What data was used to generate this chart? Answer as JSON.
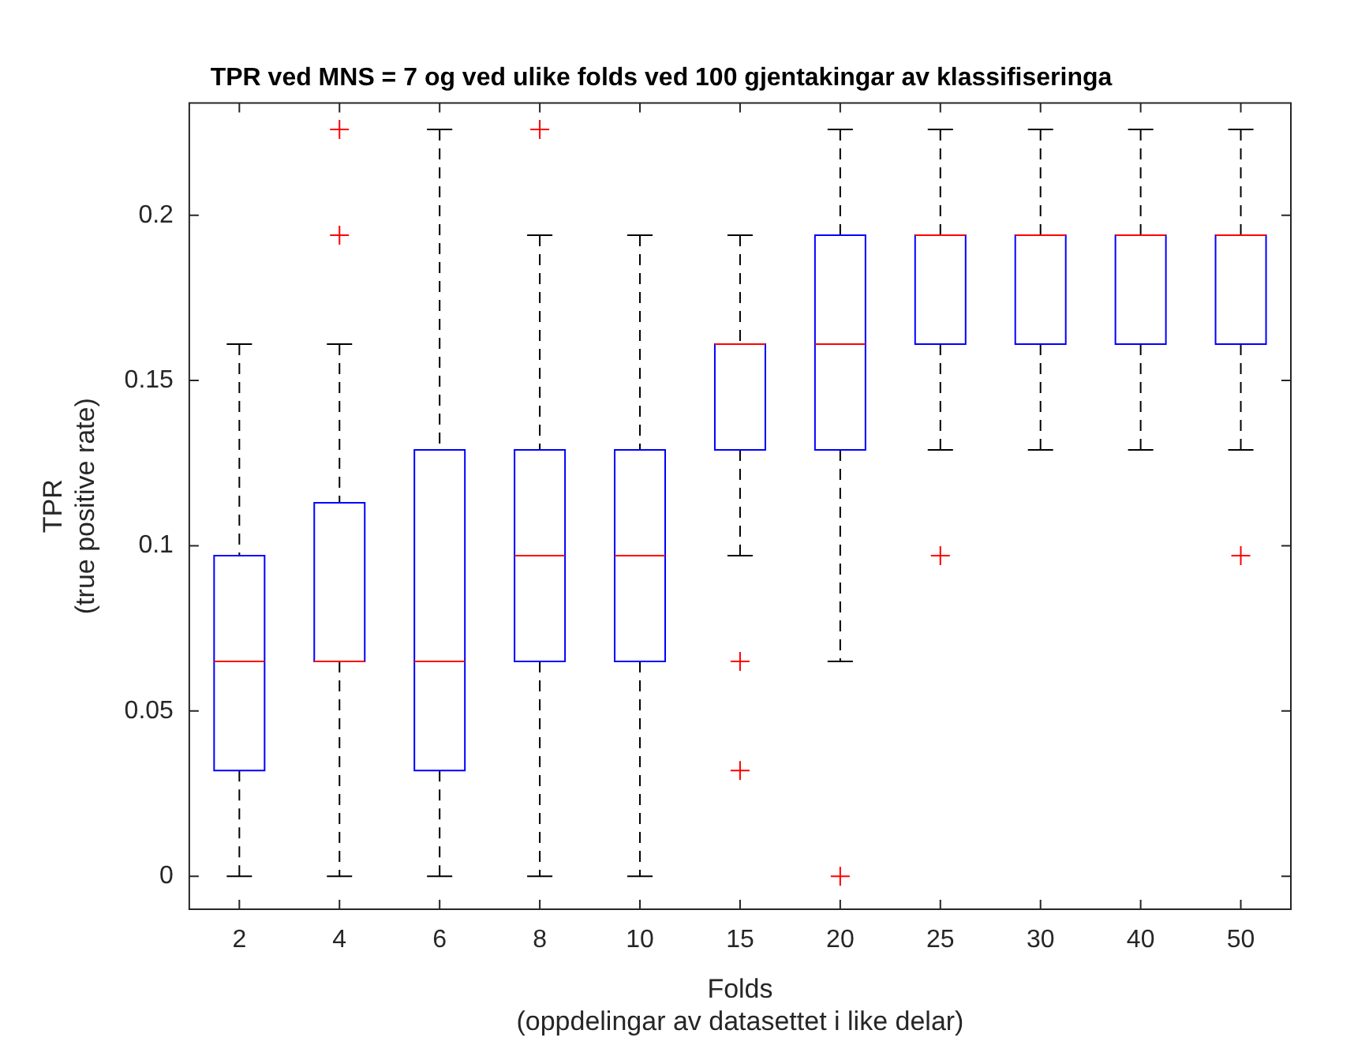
{
  "chart_data": {
    "type": "box",
    "title": "TPR ved MNS = 7 og ved ulike folds ved 100 gjentakingar av klassifiseringa",
    "xlabel": "Folds\n(oppdelingar av datasettet i like delar)",
    "ylabel": "TPR\n(true positive rate)",
    "categories": [
      "2",
      "4",
      "6",
      "8",
      "10",
      "15",
      "20",
      "25",
      "30",
      "40",
      "50"
    ],
    "ylim": [
      -0.01,
      0.234
    ],
    "yticks": [
      0,
      0.05,
      0.1,
      0.15,
      0.2
    ],
    "grid": false,
    "legend": false,
    "marker": "cross",
    "series": [
      {
        "color": "#0000ff",
        "boxes": [
          {
            "low": 0,
            "q1": 0.032,
            "median": 0.065,
            "q3": 0.097,
            "high": 0.161
          },
          {
            "low": 0,
            "q1": 0.065,
            "median": 0.065,
            "q3": 0.113,
            "high": 0.161,
            "outliers": [
              0.194,
              0.226
            ]
          },
          {
            "low": 0,
            "q1": 0.032,
            "median": 0.065,
            "q3": 0.129,
            "high": 0.226
          },
          {
            "low": 0,
            "q1": 0.065,
            "median": 0.097,
            "q3": 0.129,
            "high": 0.194,
            "outliers": [
              0.226
            ]
          },
          {
            "low": 0,
            "q1": 0.065,
            "median": 0.097,
            "q3": 0.129,
            "high": 0.194
          },
          {
            "low": 0.097,
            "q1": 0.129,
            "median": 0.161,
            "q3": 0.161,
            "high": 0.194,
            "outliers": [
              0.065,
              0.032
            ]
          },
          {
            "low": 0.065,
            "q1": 0.129,
            "median": 0.161,
            "q3": 0.194,
            "high": 0.226,
            "outliers": [
              0
            ]
          },
          {
            "low": 0.129,
            "q1": 0.161,
            "median": 0.194,
            "q3": 0.194,
            "high": 0.226,
            "outliers": [
              0.097
            ]
          },
          {
            "low": 0.129,
            "q1": 0.161,
            "median": 0.194,
            "q3": 0.194,
            "high": 0.226
          },
          {
            "low": 0.129,
            "q1": 0.161,
            "median": 0.194,
            "q3": 0.194,
            "high": 0.226
          },
          {
            "low": 0.129,
            "q1": 0.161,
            "median": 0.194,
            "q3": 0.194,
            "high": 0.226,
            "outliers": [
              0.097
            ]
          }
        ]
      }
    ]
  }
}
